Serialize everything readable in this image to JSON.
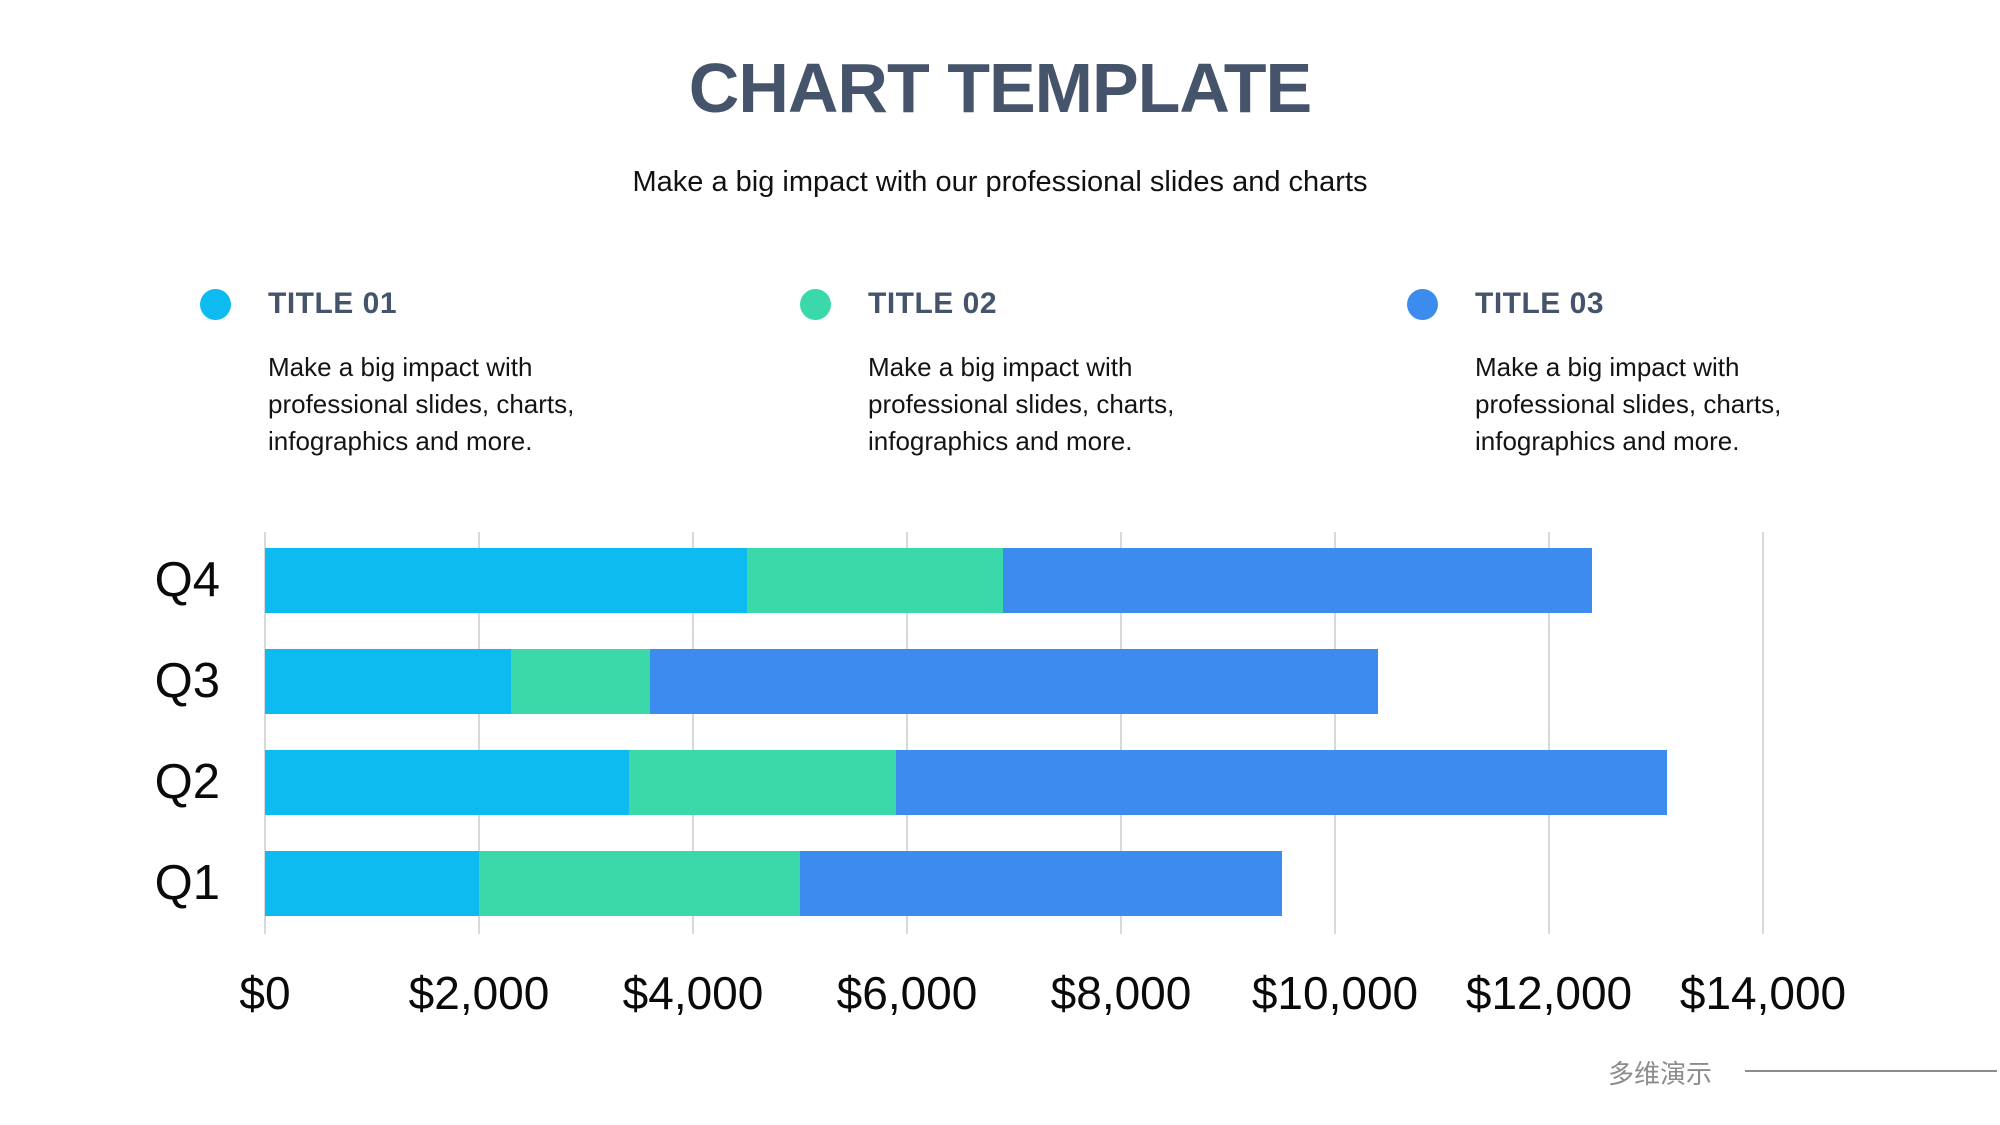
{
  "colors": {
    "heading": "#45546B",
    "text": "#121212",
    "muted": "#8C8C8C",
    "grid": "#D9D9D9",
    "series1": "#0DBBF1",
    "series2": "#3BD9AA",
    "series3": "#3C8BEE"
  },
  "header": {
    "title": "CHART TEMPLATE",
    "subtitle": "Make a big impact with our professional slides and charts"
  },
  "legend": {
    "items": [
      {
        "label": "TITLE 01",
        "color": "#0DBBF1",
        "description": "Make a big impact with professional slides, charts, infographics and more."
      },
      {
        "label": "TITLE 02",
        "color": "#3BD9AA",
        "description": "Make a big impact with professional slides, charts, infographics and more."
      },
      {
        "label": "TITLE 03",
        "color": "#3C8BEE",
        "description": "Make a big impact with professional slides, charts, infographics and more."
      }
    ]
  },
  "chart_data": {
    "type": "bar",
    "orientation": "horizontal",
    "stacked": true,
    "grid": true,
    "legend_position": "top",
    "categories": [
      "Q4",
      "Q3",
      "Q2",
      "Q1"
    ],
    "series": [
      {
        "name": "Title 01",
        "color": "#0DBBF1",
        "values": [
          4500,
          2300,
          3400,
          2000
        ]
      },
      {
        "name": "Title 02",
        "color": "#3BD9AA",
        "values": [
          2400,
          1300,
          2500,
          3000
        ]
      },
      {
        "name": "Title 03",
        "color": "#3C8BEE",
        "values": [
          5500,
          6800,
          7200,
          4500
        ]
      }
    ],
    "totals": [
      12400,
      10400,
      13100,
      9500
    ],
    "xlabel": "",
    "ylabel": "",
    "xlim": [
      0,
      15000
    ],
    "x_tick_values": [
      0,
      2000,
      4000,
      6000,
      8000,
      10000,
      12000,
      14000
    ],
    "x_tick_labels": [
      "$0",
      "$2,000",
      "$4,000",
      "$6,000",
      "$8,000",
      "$10,000",
      "$12,000",
      "$14,000"
    ]
  },
  "footer": {
    "brand": "多维演示"
  }
}
